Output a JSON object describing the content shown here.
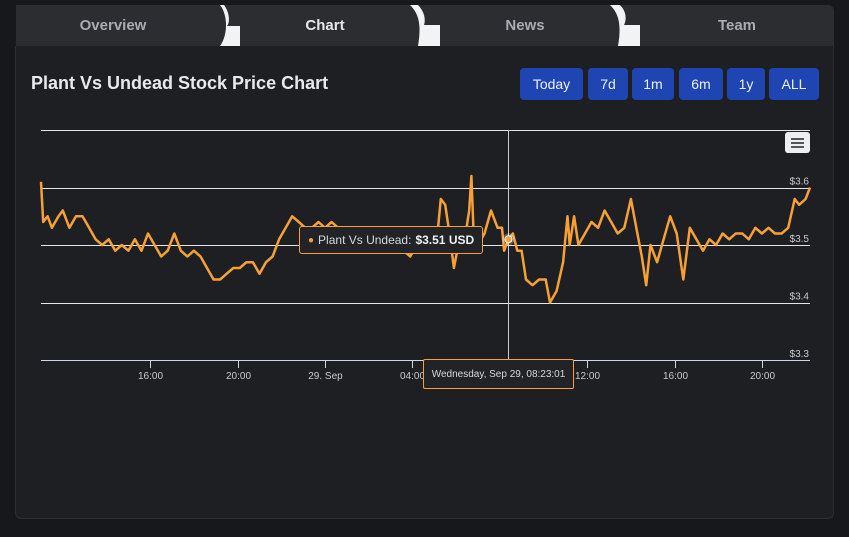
{
  "tabs": [
    {
      "label": "Overview",
      "active": false
    },
    {
      "label": "Chart",
      "active": true
    },
    {
      "label": "News",
      "active": false
    },
    {
      "label": "Team",
      "active": false
    }
  ],
  "chart_title": "Plant Vs Undead Stock Price Chart",
  "range_buttons": [
    "Today",
    "7d",
    "1m",
    "6m",
    "1y",
    "ALL"
  ],
  "tooltip": {
    "series": "Plant Vs Undead:",
    "value": "$3.51 USD"
  },
  "crosshair_label": "Wednesday, Sep 29, 08:23:01",
  "colors": {
    "line": "#f7a035",
    "button": "#1f45b3",
    "background": "#1e1f22"
  },
  "chart_data": {
    "type": "line",
    "series": [
      {
        "name": "Plant Vs Undead",
        "unit": "USD"
      }
    ],
    "y_ticks": [
      "$3.3",
      "$3.4",
      "$3.5",
      "$3.6"
    ],
    "ylim": [
      3.3,
      3.7
    ],
    "x_ticks": [
      "16:00",
      "20:00",
      "29. Sep",
      "04:00",
      "08:00",
      "12:00",
      "16:00",
      "20:00"
    ],
    "x_tick_hours": [
      16,
      20,
      24,
      28,
      32,
      36,
      40,
      44
    ],
    "xlim_hours": [
      11,
      46.2
    ],
    "crosshair_hours": 32.38,
    "points": [
      [
        11.0,
        3.61
      ],
      [
        11.1,
        3.54
      ],
      [
        11.3,
        3.55
      ],
      [
        11.5,
        3.53
      ],
      [
        11.8,
        3.55
      ],
      [
        12.0,
        3.56
      ],
      [
        12.3,
        3.53
      ],
      [
        12.6,
        3.55
      ],
      [
        12.9,
        3.55
      ],
      [
        13.2,
        3.53
      ],
      [
        13.5,
        3.51
      ],
      [
        13.8,
        3.5
      ],
      [
        14.1,
        3.51
      ],
      [
        14.4,
        3.49
      ],
      [
        14.7,
        3.5
      ],
      [
        15.0,
        3.49
      ],
      [
        15.3,
        3.51
      ],
      [
        15.6,
        3.49
      ],
      [
        15.9,
        3.52
      ],
      [
        16.2,
        3.5
      ],
      [
        16.5,
        3.48
      ],
      [
        16.8,
        3.49
      ],
      [
        17.1,
        3.52
      ],
      [
        17.4,
        3.49
      ],
      [
        17.7,
        3.48
      ],
      [
        18.0,
        3.49
      ],
      [
        18.3,
        3.48
      ],
      [
        18.6,
        3.46
      ],
      [
        18.9,
        3.44
      ],
      [
        19.2,
        3.44
      ],
      [
        19.5,
        3.45
      ],
      [
        19.8,
        3.46
      ],
      [
        20.1,
        3.46
      ],
      [
        20.4,
        3.47
      ],
      [
        20.7,
        3.47
      ],
      [
        21.0,
        3.45
      ],
      [
        21.3,
        3.47
      ],
      [
        21.6,
        3.48
      ],
      [
        21.9,
        3.51
      ],
      [
        22.2,
        3.53
      ],
      [
        22.5,
        3.55
      ],
      [
        22.8,
        3.54
      ],
      [
        23.1,
        3.53
      ],
      [
        23.4,
        3.53
      ],
      [
        23.7,
        3.54
      ],
      [
        24.0,
        3.53
      ],
      [
        24.3,
        3.54
      ],
      [
        24.6,
        3.53
      ],
      [
        24.9,
        3.52
      ],
      [
        25.2,
        3.51
      ],
      [
        25.5,
        3.49
      ],
      [
        25.8,
        3.5
      ],
      [
        26.1,
        3.49
      ],
      [
        26.4,
        3.51
      ],
      [
        26.7,
        3.5
      ],
      [
        27.0,
        3.52
      ],
      [
        27.3,
        3.51
      ],
      [
        27.6,
        3.49
      ],
      [
        27.9,
        3.48
      ],
      [
        28.2,
        3.5
      ],
      [
        28.5,
        3.49
      ],
      [
        28.8,
        3.49
      ],
      [
        29.1,
        3.5
      ],
      [
        29.3,
        3.58
      ],
      [
        29.5,
        3.57
      ],
      [
        29.7,
        3.52
      ],
      [
        29.9,
        3.46
      ],
      [
        30.1,
        3.5
      ],
      [
        30.4,
        3.51
      ],
      [
        30.6,
        3.56
      ],
      [
        30.7,
        3.62
      ],
      [
        30.8,
        3.52
      ],
      [
        31.0,
        3.5
      ],
      [
        31.3,
        3.52
      ],
      [
        31.6,
        3.56
      ],
      [
        31.9,
        3.53
      ],
      [
        32.1,
        3.53
      ],
      [
        32.2,
        3.49
      ],
      [
        32.4,
        3.51
      ],
      [
        32.6,
        3.52
      ],
      [
        32.8,
        3.49
      ],
      [
        33.0,
        3.49
      ],
      [
        33.2,
        3.44
      ],
      [
        33.5,
        3.43
      ],
      [
        33.8,
        3.44
      ],
      [
        34.1,
        3.44
      ],
      [
        34.3,
        3.4
      ],
      [
        34.6,
        3.42
      ],
      [
        34.9,
        3.47
      ],
      [
        35.1,
        3.55
      ],
      [
        35.2,
        3.5
      ],
      [
        35.4,
        3.55
      ],
      [
        35.6,
        3.5
      ],
      [
        35.9,
        3.52
      ],
      [
        36.2,
        3.54
      ],
      [
        36.5,
        3.53
      ],
      [
        36.8,
        3.56
      ],
      [
        37.1,
        3.54
      ],
      [
        37.4,
        3.52
      ],
      [
        37.7,
        3.53
      ],
      [
        38.0,
        3.58
      ],
      [
        38.3,
        3.52
      ],
      [
        38.5,
        3.48
      ],
      [
        38.7,
        3.43
      ],
      [
        38.9,
        3.5
      ],
      [
        39.2,
        3.47
      ],
      [
        39.5,
        3.51
      ],
      [
        39.8,
        3.55
      ],
      [
        40.1,
        3.52
      ],
      [
        40.4,
        3.44
      ],
      [
        40.7,
        3.53
      ],
      [
        41.0,
        3.51
      ],
      [
        41.3,
        3.49
      ],
      [
        41.6,
        3.51
      ],
      [
        41.9,
        3.5
      ],
      [
        42.2,
        3.52
      ],
      [
        42.5,
        3.51
      ],
      [
        42.8,
        3.52
      ],
      [
        43.1,
        3.52
      ],
      [
        43.4,
        3.51
      ],
      [
        43.7,
        3.53
      ],
      [
        44.0,
        3.52
      ],
      [
        44.3,
        3.53
      ],
      [
        44.6,
        3.52
      ],
      [
        44.9,
        3.52
      ],
      [
        45.2,
        3.53
      ],
      [
        45.5,
        3.58
      ],
      [
        45.7,
        3.57
      ],
      [
        46.0,
        3.58
      ],
      [
        46.2,
        3.6
      ]
    ]
  }
}
